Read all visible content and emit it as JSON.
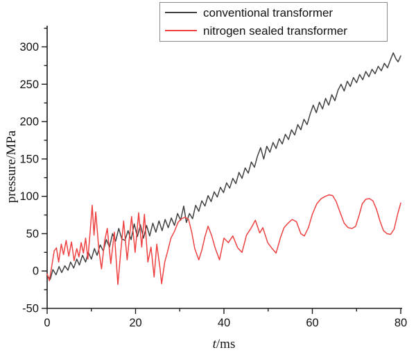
{
  "legend": {
    "entries": [
      {
        "label": "conventional transformer",
        "color": "#3f3f3f"
      },
      {
        "label": "nitrogen sealed transformer",
        "color": "#ee4040"
      }
    ]
  },
  "chart_data": {
    "type": "line",
    "title": "",
    "xlabel": "t/ms",
    "xlabel_var": "t",
    "xlabel_unit": "/ms",
    "ylabel": "pressure/MPa",
    "xlim": [
      0,
      80
    ],
    "ylim": [
      -50,
      300
    ],
    "xticks": [
      0,
      20,
      40,
      60,
      80
    ],
    "xminor": [
      10,
      30,
      50,
      70
    ],
    "yticks": [
      -50,
      0,
      50,
      100,
      150,
      200,
      250,
      300
    ],
    "yminor": [
      -25,
      25,
      75,
      125,
      175,
      225,
      275,
      325
    ],
    "grid": false,
    "legend_position": "top-center",
    "axis_color": "#1a1a1a",
    "series": [
      {
        "name": "conventional transformer",
        "color": "#3f3f3f",
        "points": [
          [
            0,
            -6
          ],
          [
            0.7,
            -11
          ],
          [
            1.3,
            2
          ],
          [
            2,
            -5
          ],
          [
            2.7,
            6
          ],
          [
            3.3,
            -2
          ],
          [
            4,
            7
          ],
          [
            4.7,
            1
          ],
          [
            5.3,
            12
          ],
          [
            6,
            4
          ],
          [
            6.7,
            16
          ],
          [
            7.3,
            8
          ],
          [
            8,
            21
          ],
          [
            8.7,
            12
          ],
          [
            9.3,
            25
          ],
          [
            10,
            16
          ],
          [
            10.7,
            30
          ],
          [
            11.3,
            21
          ],
          [
            12,
            35
          ],
          [
            12.7,
            27
          ],
          [
            13.4,
            42
          ],
          [
            14.1,
            32
          ],
          [
            14.8,
            50
          ],
          [
            15.5,
            40
          ],
          [
            16.2,
            57
          ],
          [
            16.9,
            43
          ],
          [
            17.6,
            41
          ],
          [
            18.3,
            54
          ],
          [
            19,
            42
          ],
          [
            19.7,
            63
          ],
          [
            20.4,
            46
          ],
          [
            21.1,
            62
          ],
          [
            21.8,
            44
          ],
          [
            22.5,
            61
          ],
          [
            23.2,
            47
          ],
          [
            23.9,
            64
          ],
          [
            24.6,
            52
          ],
          [
            25.3,
            67
          ],
          [
            26,
            54
          ],
          [
            26.7,
            69
          ],
          [
            27.4,
            58
          ],
          [
            28.1,
            71
          ],
          [
            28.8,
            61
          ],
          [
            29.5,
            77
          ],
          [
            30.2,
            68
          ],
          [
            30.9,
            87
          ],
          [
            31.5,
            65
          ],
          [
            32.2,
            77
          ],
          [
            32.9,
            70
          ],
          [
            33.6,
            88
          ],
          [
            34.3,
            80
          ],
          [
            35,
            94
          ],
          [
            35.7,
            87
          ],
          [
            36.4,
            101
          ],
          [
            37.1,
            93
          ],
          [
            37.8,
            106
          ],
          [
            38.5,
            99
          ],
          [
            39.2,
            112
          ],
          [
            39.9,
            105
          ],
          [
            40.6,
            118
          ],
          [
            41.3,
            111
          ],
          [
            42,
            124
          ],
          [
            42.7,
            117
          ],
          [
            43.4,
            132
          ],
          [
            44.1,
            124
          ],
          [
            44.8,
            138
          ],
          [
            45.5,
            131
          ],
          [
            46.2,
            146
          ],
          [
            46.9,
            139
          ],
          [
            47.6,
            154
          ],
          [
            48.3,
            165
          ],
          [
            49,
            150
          ],
          [
            49.7,
            167
          ],
          [
            50.4,
            159
          ],
          [
            51.1,
            172
          ],
          [
            51.8,
            164
          ],
          [
            52.5,
            177
          ],
          [
            53.2,
            170
          ],
          [
            53.9,
            183
          ],
          [
            54.6,
            176
          ],
          [
            55.3,
            189
          ],
          [
            56,
            182
          ],
          [
            56.7,
            196
          ],
          [
            57.4,
            189
          ],
          [
            58.1,
            203
          ],
          [
            58.8,
            196
          ],
          [
            59.5,
            210
          ],
          [
            60.2,
            222
          ],
          [
            60.9,
            212
          ],
          [
            61.6,
            226
          ],
          [
            62.3,
            217
          ],
          [
            63,
            231
          ],
          [
            63.7,
            222
          ],
          [
            64.4,
            236
          ],
          [
            65.1,
            228
          ],
          [
            65.8,
            242
          ],
          [
            66.5,
            250
          ],
          [
            67.2,
            241
          ],
          [
            67.9,
            254
          ],
          [
            68.6,
            247
          ],
          [
            69.3,
            259
          ],
          [
            70,
            252
          ],
          [
            70.7,
            263
          ],
          [
            71.4,
            256
          ],
          [
            72.1,
            267
          ],
          [
            72.8,
            260
          ],
          [
            73.5,
            270
          ],
          [
            74.2,
            264
          ],
          [
            74.9,
            274
          ],
          [
            75.6,
            268
          ],
          [
            76.3,
            278
          ],
          [
            77,
            272
          ],
          [
            77.7,
            283
          ],
          [
            78.3,
            292
          ],
          [
            78.9,
            284
          ],
          [
            79.4,
            280
          ],
          [
            80,
            288
          ]
        ]
      },
      {
        "name": "nitrogen sealed transformer",
        "color": "#ee4040",
        "points": [
          [
            0,
            -4
          ],
          [
            0.5,
            -13
          ],
          [
            1,
            5
          ],
          [
            1.6,
            27
          ],
          [
            2.1,
            31
          ],
          [
            2.6,
            12
          ],
          [
            3.2,
            36
          ],
          [
            3.7,
            22
          ],
          [
            4.3,
            41
          ],
          [
            4.9,
            20
          ],
          [
            5.5,
            39
          ],
          [
            6.1,
            14
          ],
          [
            6.7,
            30
          ],
          [
            7.2,
            19
          ],
          [
            7.7,
            38
          ],
          [
            8.2,
            24
          ],
          [
            8.7,
            44
          ],
          [
            9.2,
            16
          ],
          [
            9.7,
            50
          ],
          [
            10.2,
            88
          ],
          [
            10.6,
            48
          ],
          [
            11,
            79
          ],
          [
            11.7,
            28
          ],
          [
            12.3,
            3
          ],
          [
            13,
            40
          ],
          [
            13.6,
            57
          ],
          [
            14.4,
            10
          ],
          [
            15.2,
            52
          ],
          [
            16,
            -18
          ],
          [
            16.6,
            22
          ],
          [
            17.3,
            67
          ],
          [
            18.1,
            15
          ],
          [
            19.1,
            73
          ],
          [
            19.9,
            25
          ],
          [
            20.7,
            78
          ],
          [
            21.4,
            32
          ],
          [
            22,
            76
          ],
          [
            22.8,
            12
          ],
          [
            23.5,
            32
          ],
          [
            24.2,
            -8
          ],
          [
            24.8,
            36
          ],
          [
            25.5,
            5
          ],
          [
            25.9,
            -17
          ],
          [
            26.6,
            12
          ],
          [
            27.2,
            25
          ],
          [
            28,
            44
          ],
          [
            28.8,
            53
          ],
          [
            29.6,
            65
          ],
          [
            30.4,
            70
          ],
          [
            31.2,
            72
          ],
          [
            32,
            69
          ],
          [
            32.7,
            52
          ],
          [
            33.4,
            30
          ],
          [
            34.3,
            15
          ],
          [
            35,
            28
          ],
          [
            35.7,
            46
          ],
          [
            36.4,
            60
          ],
          [
            37.2,
            48
          ],
          [
            38,
            31
          ],
          [
            39,
            15
          ],
          [
            40,
            44
          ],
          [
            41,
            38
          ],
          [
            42,
            47
          ],
          [
            43.1,
            31
          ],
          [
            44.1,
            25
          ],
          [
            45.1,
            48
          ],
          [
            46.1,
            57
          ],
          [
            47.1,
            68
          ],
          [
            48.1,
            51
          ],
          [
            48.8,
            58
          ],
          [
            49.9,
            38
          ],
          [
            50.9,
            30
          ],
          [
            51.8,
            24
          ],
          [
            52.8,
            45
          ],
          [
            53.6,
            58
          ],
          [
            54.5,
            64
          ],
          [
            55.4,
            69
          ],
          [
            56.4,
            66
          ],
          [
            57.4,
            50
          ],
          [
            58.2,
            47
          ],
          [
            59.1,
            58
          ],
          [
            60,
            76
          ],
          [
            61,
            90
          ],
          [
            62,
            97
          ],
          [
            63,
            100
          ],
          [
            63.8,
            102
          ],
          [
            64.6,
            101
          ],
          [
            65.4,
            93
          ],
          [
            66.3,
            78
          ],
          [
            67.2,
            64
          ],
          [
            68.1,
            58
          ],
          [
            69,
            57
          ],
          [
            69.8,
            60
          ],
          [
            70.6,
            75
          ],
          [
            71.3,
            90
          ],
          [
            72.1,
            96
          ],
          [
            72.9,
            97
          ],
          [
            73.7,
            94
          ],
          [
            74.5,
            83
          ],
          [
            75.3,
            67
          ],
          [
            76.1,
            54
          ],
          [
            76.9,
            50
          ],
          [
            77.7,
            49
          ],
          [
            78.5,
            56
          ],
          [
            79.3,
            76
          ],
          [
            80,
            91
          ]
        ]
      }
    ]
  }
}
